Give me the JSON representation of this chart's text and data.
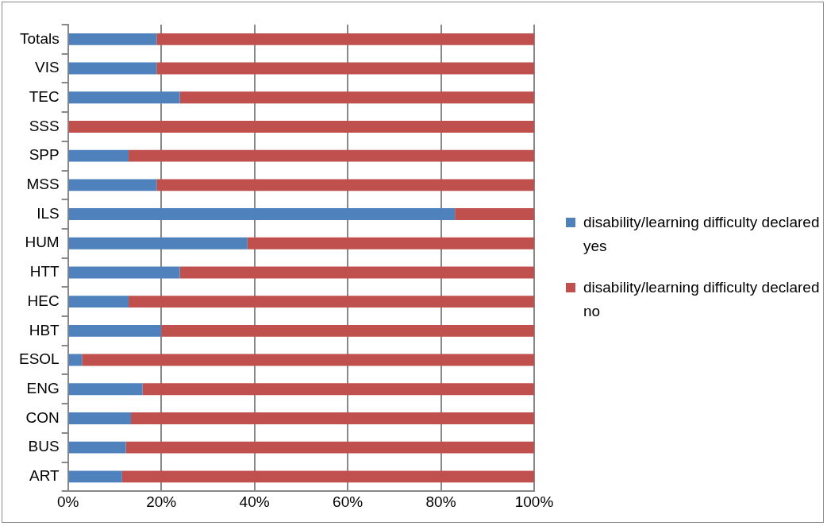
{
  "chart_data": {
    "type": "bar",
    "orientation": "horizontal",
    "stacked": true,
    "categories": [
      "Totals",
      "VIS",
      "TEC",
      "SSS",
      "SPP",
      "MSS",
      "ILS",
      "HUM",
      "HTT",
      "HEC",
      "HBT",
      "ESOL",
      "ENG",
      "CON",
      "BUS",
      "ART"
    ],
    "series": [
      {
        "name": "disability/learning difficulty declared yes",
        "color": "#4f81bd",
        "values": [
          19,
          19,
          24,
          0,
          13,
          19,
          83,
          38.5,
          24,
          13,
          20,
          3,
          16,
          13.5,
          12.4,
          11.6
        ]
      },
      {
        "name": "disability/learning difficulty declared no",
        "color": "#c0504d",
        "values": [
          81,
          81,
          76,
          100,
          87,
          81,
          17,
          61.5,
          76,
          87,
          80,
          97,
          84,
          86.5,
          87.6,
          88.4
        ]
      }
    ],
    "xlim": [
      0,
      100
    ],
    "xticks": [
      {
        "value": 0,
        "label": "0%"
      },
      {
        "value": 20,
        "label": "20%"
      },
      {
        "value": 40,
        "label": "40%"
      },
      {
        "value": 60,
        "label": "60%"
      },
      {
        "value": 80,
        "label": "80%"
      },
      {
        "value": 100,
        "label": "100%"
      }
    ],
    "grid": "x",
    "legend": "right"
  }
}
